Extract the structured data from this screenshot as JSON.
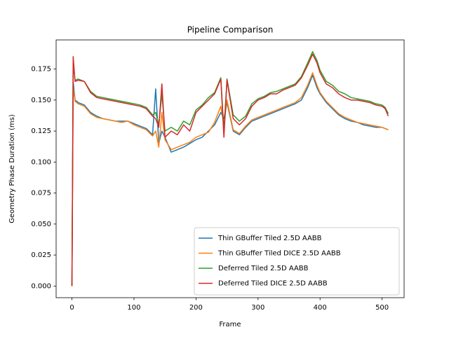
{
  "chart_data": {
    "type": "line",
    "title": "Pipeline Comparison",
    "x_label": "Frame",
    "y_label": "Geometry Phase Duration (ms)",
    "x": [
      0,
      2,
      5,
      10,
      20,
      30,
      40,
      50,
      60,
      70,
      80,
      90,
      100,
      110,
      120,
      130,
      135,
      140,
      145,
      150,
      160,
      170,
      180,
      190,
      200,
      210,
      220,
      230,
      240,
      245,
      250,
      260,
      270,
      280,
      290,
      300,
      310,
      320,
      330,
      340,
      350,
      360,
      370,
      380,
      388,
      395,
      400,
      410,
      420,
      430,
      440,
      450,
      460,
      470,
      480,
      490,
      500,
      505,
      510
    ],
    "series": [
      {
        "name": "Thin GBuffer Tiled 2.5D AABB",
        "color": "#1f77b4",
        "values": [
          0,
          0.165,
          0.15,
          0.148,
          0.146,
          0.14,
          0.137,
          0.135,
          0.134,
          0.133,
          0.133,
          0.133,
          0.131,
          0.129,
          0.127,
          0.122,
          0.159,
          0.115,
          0.125,
          0.12,
          0.108,
          0.11,
          0.112,
          0.115,
          0.118,
          0.12,
          0.125,
          0.13,
          0.14,
          0.135,
          0.148,
          0.125,
          0.122,
          0.128,
          0.133,
          0.135,
          0.137,
          0.139,
          0.141,
          0.143,
          0.145,
          0.147,
          0.15,
          0.16,
          0.17,
          0.16,
          0.155,
          0.148,
          0.143,
          0.138,
          0.135,
          0.133,
          0.132,
          0.13,
          0.129,
          0.128,
          0.128,
          0.127,
          0.126
        ]
      },
      {
        "name": "Thin GBuffer Tiled DICE 2.5D AABB",
        "color": "#ff7f0e",
        "values": [
          0,
          0.16,
          0.149,
          0.147,
          0.145,
          0.139,
          0.136,
          0.135,
          0.134,
          0.133,
          0.132,
          0.133,
          0.13,
          0.128,
          0.126,
          0.121,
          0.125,
          0.112,
          0.14,
          0.118,
          0.11,
          0.112,
          0.114,
          0.116,
          0.12,
          0.122,
          0.124,
          0.132,
          0.145,
          0.13,
          0.15,
          0.126,
          0.123,
          0.129,
          0.134,
          0.136,
          0.138,
          0.14,
          0.142,
          0.144,
          0.146,
          0.148,
          0.152,
          0.162,
          0.172,
          0.162,
          0.156,
          0.149,
          0.144,
          0.139,
          0.136,
          0.134,
          0.132,
          0.131,
          0.13,
          0.129,
          0.128,
          0.127,
          0.126
        ]
      },
      {
        "name": "Deferred Tiled 2.5D AABB",
        "color": "#2ca02c",
        "values": [
          0,
          0.18,
          0.166,
          0.167,
          0.165,
          0.157,
          0.153,
          0.152,
          0.151,
          0.15,
          0.149,
          0.148,
          0.147,
          0.146,
          0.144,
          0.138,
          0.14,
          0.13,
          0.155,
          0.125,
          0.128,
          0.125,
          0.133,
          0.13,
          0.142,
          0.146,
          0.152,
          0.156,
          0.168,
          0.125,
          0.167,
          0.138,
          0.133,
          0.137,
          0.147,
          0.151,
          0.153,
          0.156,
          0.157,
          0.159,
          0.161,
          0.163,
          0.169,
          0.18,
          0.189,
          0.182,
          0.174,
          0.165,
          0.162,
          0.157,
          0.155,
          0.152,
          0.151,
          0.15,
          0.149,
          0.147,
          0.146,
          0.144,
          0.139
        ]
      },
      {
        "name": "Deferred Tiled DICE 2.5D AABB",
        "color": "#d62728",
        "values": [
          0,
          0.185,
          0.165,
          0.166,
          0.165,
          0.156,
          0.152,
          0.151,
          0.15,
          0.149,
          0.148,
          0.147,
          0.146,
          0.145,
          0.143,
          0.137,
          0.135,
          0.128,
          0.163,
          0.12,
          0.125,
          0.122,
          0.13,
          0.125,
          0.14,
          0.145,
          0.15,
          0.155,
          0.167,
          0.12,
          0.166,
          0.135,
          0.13,
          0.135,
          0.145,
          0.15,
          0.152,
          0.155,
          0.155,
          0.158,
          0.16,
          0.162,
          0.168,
          0.178,
          0.187,
          0.18,
          0.172,
          0.163,
          0.16,
          0.155,
          0.152,
          0.15,
          0.15,
          0.149,
          0.148,
          0.146,
          0.145,
          0.143,
          0.137
        ]
      }
    ],
    "xlim": [
      -25.5,
      535.5
    ],
    "ylim": [
      -0.0094,
      0.1985
    ],
    "xticks": [
      0,
      100,
      200,
      300,
      400,
      500
    ],
    "yticks": [
      {
        "value": 0,
        "label": "0.000"
      },
      {
        "value": 0.025,
        "label": "0.025"
      },
      {
        "value": 0.05,
        "label": "0.050"
      },
      {
        "value": 0.075,
        "label": "0.075"
      },
      {
        "value": 0.1,
        "label": "0.100"
      },
      {
        "value": 0.125,
        "label": "0.125"
      },
      {
        "value": 0.15,
        "label": "0.150"
      },
      {
        "value": 0.175,
        "label": "0.175"
      }
    ],
    "legend": "lower right"
  }
}
